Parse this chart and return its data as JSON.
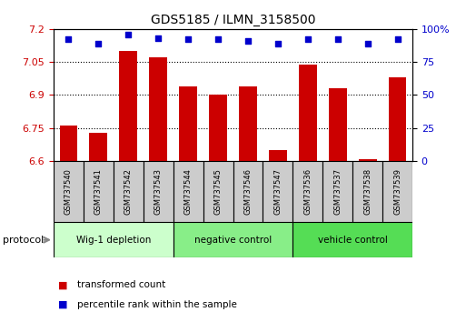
{
  "title": "GDS5185 / ILMN_3158500",
  "samples": [
    "GSM737540",
    "GSM737541",
    "GSM737542",
    "GSM737543",
    "GSM737544",
    "GSM737545",
    "GSM737546",
    "GSM737547",
    "GSM737536",
    "GSM737537",
    "GSM737538",
    "GSM737539"
  ],
  "transformed_count": [
    6.76,
    6.73,
    7.1,
    7.07,
    6.94,
    6.9,
    6.94,
    6.65,
    7.04,
    6.93,
    6.61,
    6.98
  ],
  "percentile_rank": [
    92,
    89,
    96,
    93,
    92,
    92,
    91,
    89,
    92,
    92,
    89,
    92
  ],
  "groups": [
    {
      "label": "Wig-1 depletion",
      "start": 0,
      "end": 4,
      "color": "#ccffcc"
    },
    {
      "label": "negative control",
      "start": 4,
      "end": 8,
      "color": "#88ee88"
    },
    {
      "label": "vehicle control",
      "start": 8,
      "end": 12,
      "color": "#55dd55"
    }
  ],
  "ylim_left": [
    6.6,
    7.2
  ],
  "ylim_right": [
    0,
    100
  ],
  "yticks_left": [
    6.6,
    6.75,
    6.9,
    7.05,
    7.2
  ],
  "yticks_right": [
    0,
    25,
    50,
    75,
    100
  ],
  "grid_values": [
    6.75,
    6.9,
    7.05
  ],
  "bar_color": "#cc0000",
  "dot_color": "#0000cc",
  "bar_width": 0.6,
  "protocol_label": "protocol",
  "sample_box_color": "#cccccc",
  "legend_items": [
    {
      "label": "transformed count",
      "color": "#cc0000"
    },
    {
      "label": "percentile rank within the sample",
      "color": "#0000cc"
    }
  ]
}
